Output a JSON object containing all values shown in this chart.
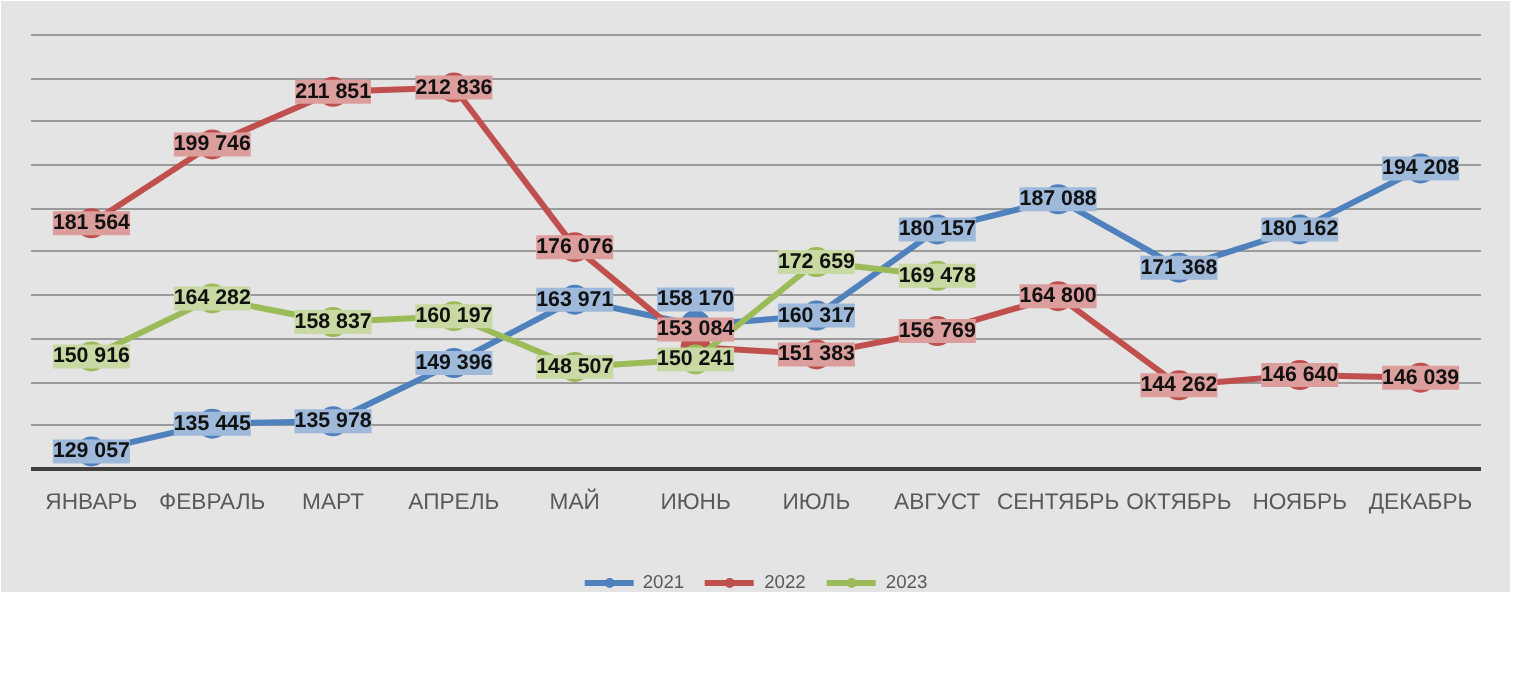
{
  "chart_data": {
    "type": "line",
    "categories": [
      "ЯНВАРЬ",
      "ФЕВРАЛЬ",
      "МАРТ",
      "АПРЕЛЬ",
      "МАЙ",
      "ИЮНЬ",
      "ИЮЛЬ",
      "АВГУСТ",
      "СЕНТЯБРЬ",
      "ОКТЯБРЬ",
      "НОЯБРЬ",
      "ДЕКАБРЬ"
    ],
    "series": [
      {
        "name": "2021",
        "color": "#4f81bd",
        "values": [
          129057,
          135445,
          135978,
          149396,
          163971,
          158170,
          160317,
          180157,
          187088,
          171368,
          180162,
          194208
        ]
      },
      {
        "name": "2022",
        "color": "#c0504d",
        "values": [
          181564,
          199746,
          211851,
          212836,
          176076,
          153084,
          151383,
          156769,
          164800,
          144262,
          146640,
          146039
        ]
      },
      {
        "name": "2023",
        "color": "#9bbb59",
        "values": [
          150916,
          164282,
          158837,
          160197,
          148507,
          150241,
          172659,
          169478,
          null,
          null,
          null,
          null
        ]
      }
    ],
    "ylim": [
      125000,
      230000
    ],
    "yticks": [
      {
        "value": 125000,
        "label": null
      },
      {
        "value": 135000,
        "label": null
      },
      {
        "value": 145000,
        "label": null
      },
      {
        "value": 155000,
        "label": null
      },
      {
        "value": 165000,
        "label": null
      },
      {
        "value": 175000,
        "label": null
      },
      {
        "value": 185000,
        "label": null
      },
      {
        "value": 195000,
        "label": null
      },
      {
        "value": 205000,
        "label": null
      },
      {
        "value": 215000,
        "label": null
      },
      {
        "value": 225000,
        "label": null
      }
    ],
    "tick_labels": "x",
    "grid": "y",
    "legend": "bottom",
    "marker": "circle",
    "line_style": "solid",
    "data_labels": true
  }
}
